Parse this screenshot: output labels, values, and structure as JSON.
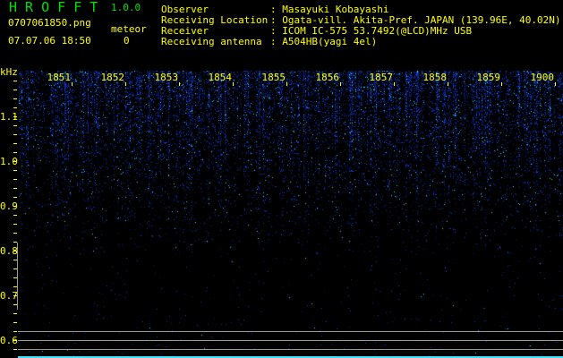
{
  "app": {
    "title": "H R O F F T",
    "version": "1.0.0"
  },
  "file": {
    "name": "0707061850.png",
    "datetime": "07.07.06 18:50"
  },
  "meteor": {
    "label": "meteor",
    "count": "0"
  },
  "info": [
    {
      "label": "Observer",
      "value": ": Masayuki Kobayashi"
    },
    {
      "label": "Receiving Location",
      "value": ": Ogata-vill. Akita-Pref. JAPAN (139.96E, 40.02N)"
    },
    {
      "label": "Receiver",
      "value": ": ICOM IC-575 53.7492(@LCD)MHz USB"
    },
    {
      "label": "Receiving antenna",
      "value": ": A504HB(yagi 4el)"
    }
  ],
  "spectrogram": {
    "y_unit": "kHz",
    "y_labels": [
      "1.1",
      "1.0",
      "0.9",
      "0.8",
      "0.7",
      "0.6"
    ],
    "time_labels": [
      "1851",
      "1852",
      "1853",
      "1854",
      "1855",
      "1856",
      "1857",
      "1858",
      "1859",
      "1900"
    ],
    "colors": {
      "axis_text": "#ffff00",
      "title": "#00e000",
      "signal": "#1a2cff",
      "strong_signal": "#40e0ff",
      "baseline": "#40e0ff",
      "reference_lines": "#9a9a9a"
    }
  }
}
